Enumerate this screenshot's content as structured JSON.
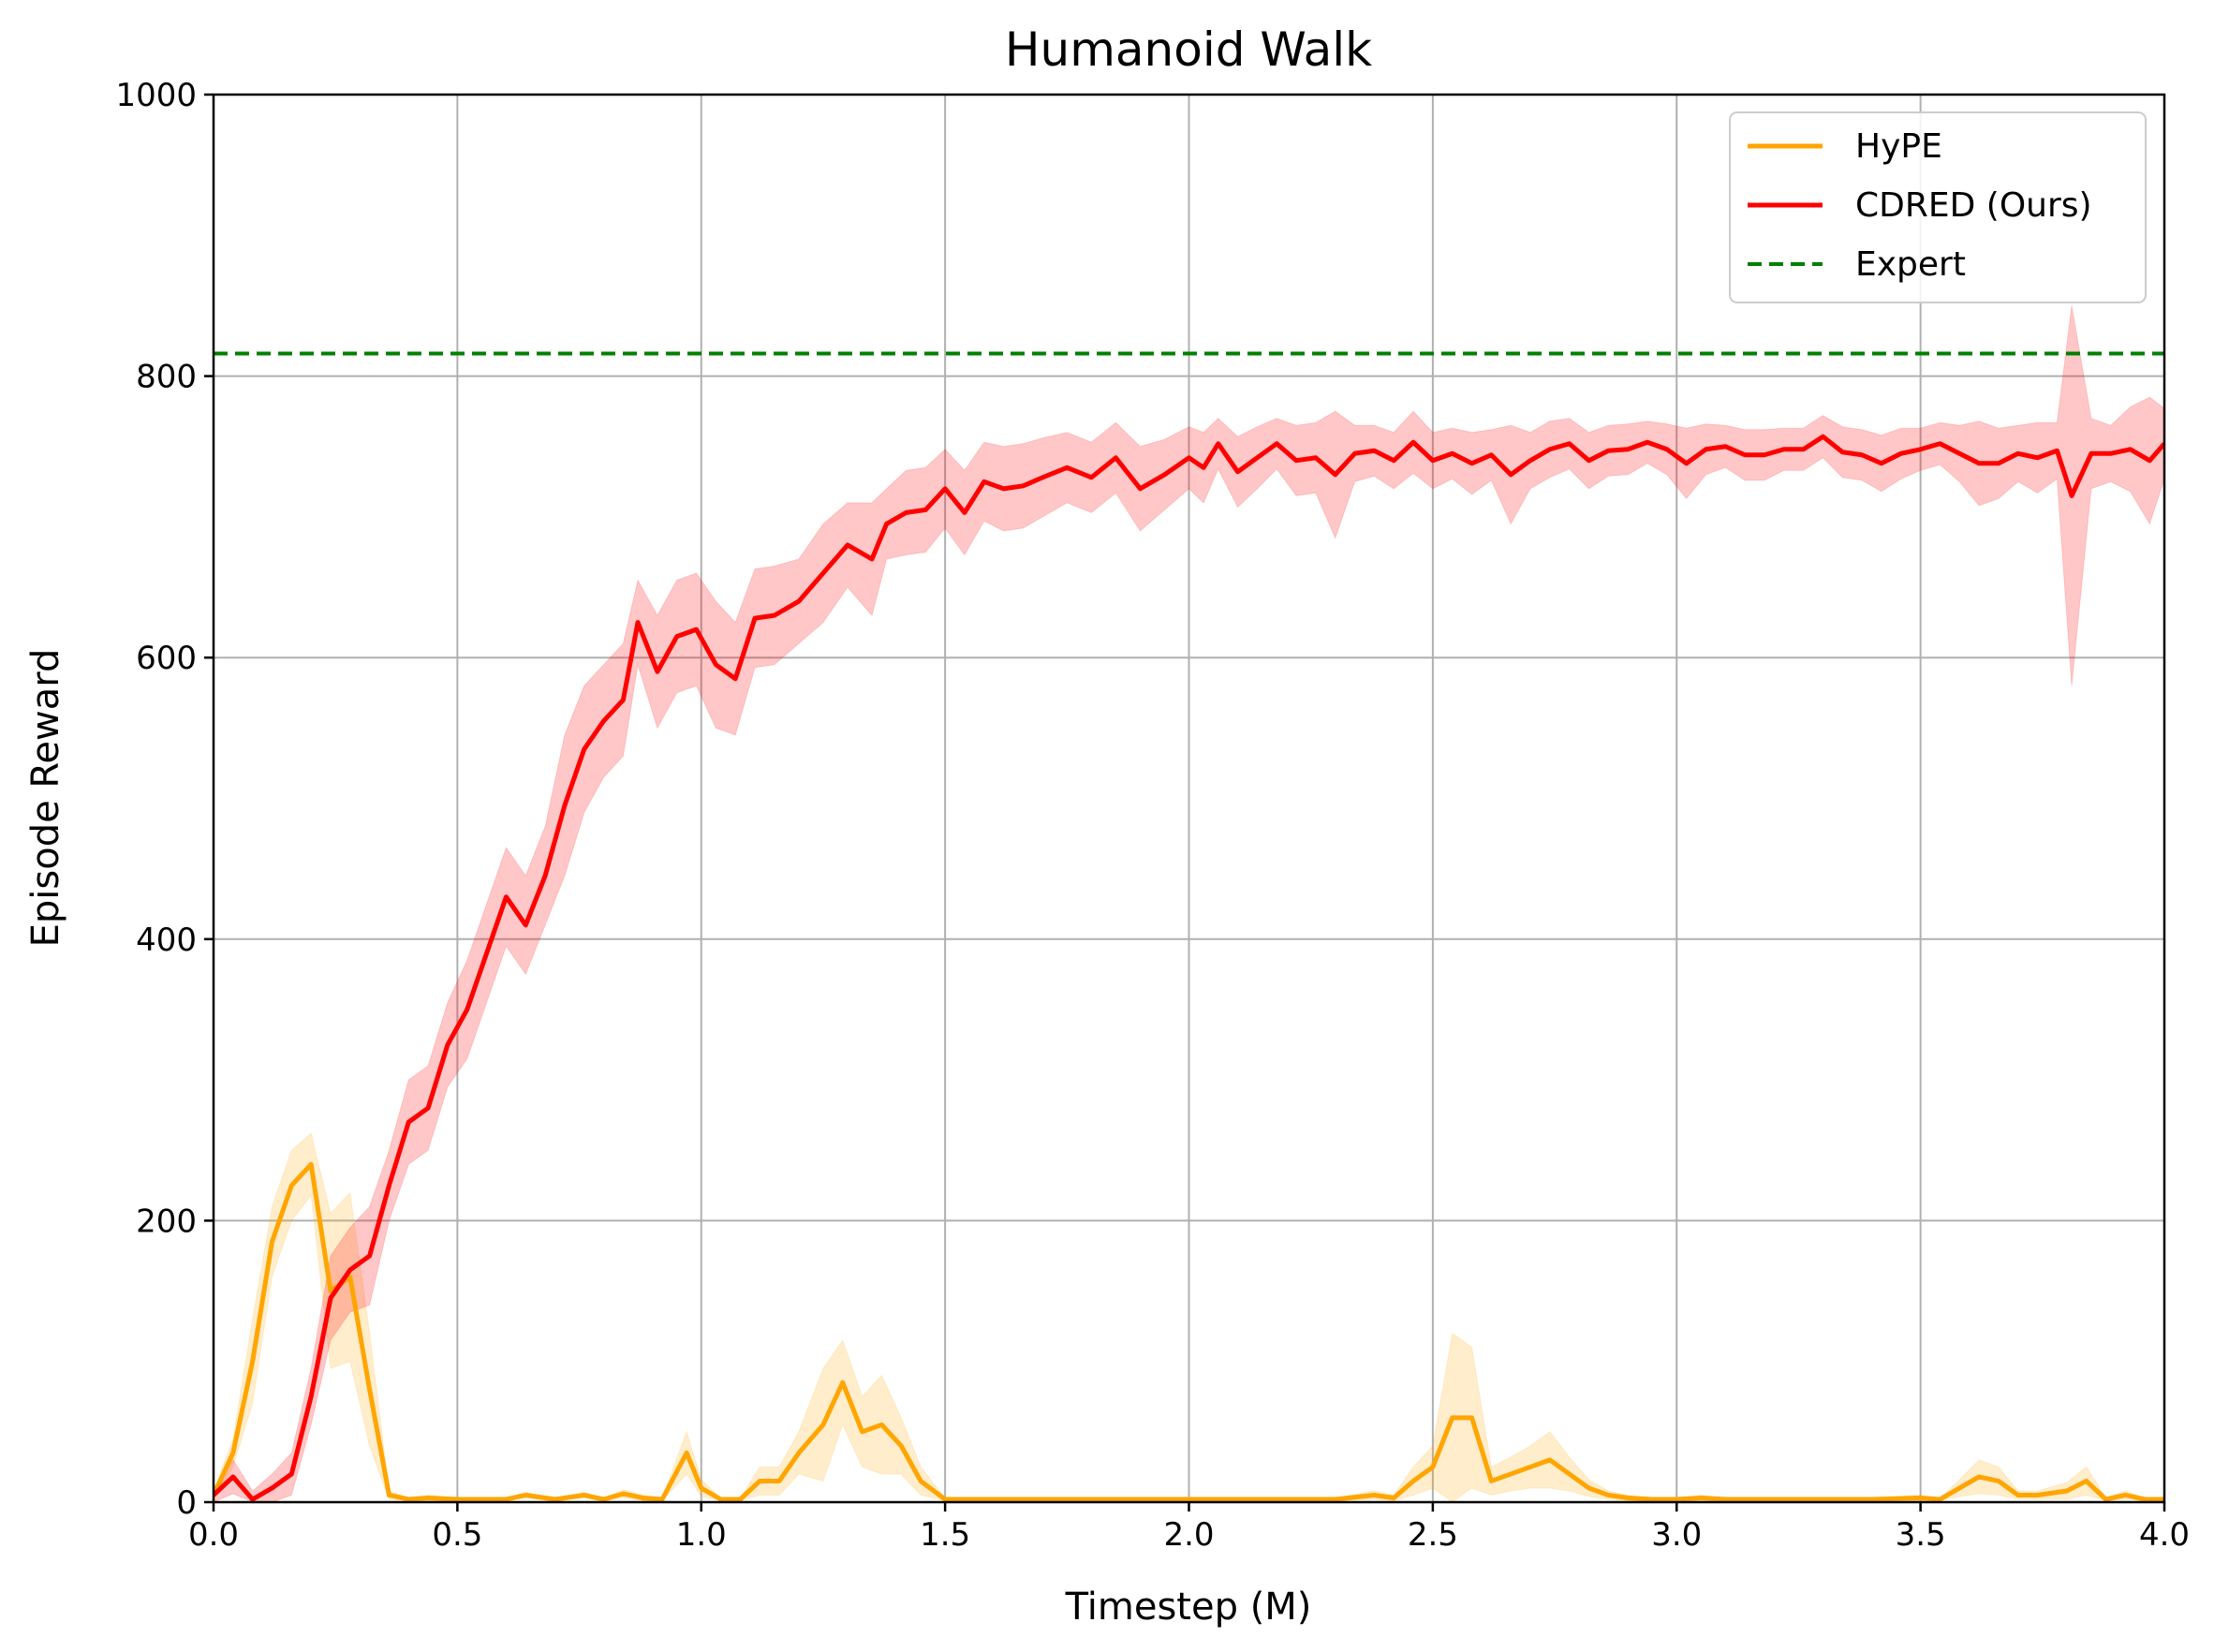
{
  "chart_data": {
    "type": "line",
    "title": "Humanoid Walk",
    "xlabel": "Timestep (M)",
    "ylabel": "Episode Reward",
    "xlim": [
      0,
      4
    ],
    "ylim": [
      0,
      1000
    ],
    "xticks": [
      "0.0",
      "0.5",
      "1.0",
      "1.5",
      "2.0",
      "2.5",
      "3.0",
      "3.5",
      "4.0"
    ],
    "yticks": [
      "0",
      "200",
      "400",
      "600",
      "800",
      "1000"
    ],
    "grid": true,
    "legend_position": "top-right",
    "series": [
      {
        "name": "HyPE",
        "color": "#ffa500",
        "style": "solid",
        "x": [
          0,
          0.04,
          0.08,
          0.12,
          0.16,
          0.2,
          0.24,
          0.28,
          0.32,
          0.36,
          0.4,
          0.44,
          0.5,
          0.56,
          0.6,
          0.64,
          0.7,
          0.76,
          0.8,
          0.84,
          0.88,
          0.92,
          0.97,
          1.0,
          1.04,
          1.08,
          1.12,
          1.16,
          1.2,
          1.25,
          1.29,
          1.33,
          1.37,
          1.41,
          1.45,
          1.5,
          1.6,
          1.7,
          1.8,
          1.9,
          2.0,
          2.1,
          2.2,
          2.3,
          2.38,
          2.42,
          2.46,
          2.5,
          2.54,
          2.58,
          2.62,
          2.66,
          2.7,
          2.74,
          2.78,
          2.82,
          2.86,
          2.9,
          2.95,
          3.0,
          3.05,
          3.1,
          3.2,
          3.3,
          3.4,
          3.5,
          3.54,
          3.58,
          3.62,
          3.66,
          3.7,
          3.74,
          3.78,
          3.8,
          3.84,
          3.88,
          3.92,
          3.96,
          4.0
        ],
        "values": [
          5,
          35,
          100,
          185,
          225,
          240,
          150,
          160,
          80,
          5,
          2,
          3,
          2,
          2,
          2,
          5,
          2,
          5,
          2,
          6,
          3,
          2,
          35,
          10,
          2,
          2,
          15,
          15,
          35,
          55,
          85,
          50,
          55,
          40,
          15,
          2,
          2,
          2,
          2,
          2,
          2,
          2,
          2,
          2,
          5,
          3,
          15,
          25,
          60,
          60,
          15,
          20,
          25,
          30,
          20,
          10,
          5,
          3,
          2,
          2,
          3,
          2,
          2,
          2,
          2,
          3,
          2,
          10,
          18,
          15,
          5,
          5,
          7,
          8,
          15,
          2,
          5,
          2,
          2
        ],
        "band_half_width": [
          3,
          10,
          30,
          25,
          25,
          22,
          55,
          60,
          40,
          3,
          1,
          2,
          1,
          1,
          1,
          2,
          1,
          2,
          1,
          3,
          2,
          1,
          15,
          6,
          1,
          1,
          10,
          10,
          15,
          40,
          30,
          25,
          35,
          20,
          10,
          1,
          1,
          1,
          1,
          1,
          1,
          1,
          1,
          1,
          3,
          2,
          10,
          15,
          60,
          50,
          10,
          12,
          15,
          20,
          12,
          6,
          3,
          2,
          1,
          1,
          2,
          1,
          1,
          1,
          1,
          2,
          1,
          6,
          12,
          10,
          3,
          3,
          5,
          6,
          10,
          1,
          3,
          1,
          1
        ]
      },
      {
        "name": "CDRED (Ours)",
        "color": "#ff0000",
        "style": "solid",
        "x": [
          0,
          0.04,
          0.08,
          0.12,
          0.16,
          0.2,
          0.24,
          0.28,
          0.32,
          0.36,
          0.4,
          0.44,
          0.48,
          0.52,
          0.56,
          0.6,
          0.64,
          0.68,
          0.72,
          0.76,
          0.8,
          0.84,
          0.87,
          0.91,
          0.95,
          0.99,
          1.03,
          1.07,
          1.11,
          1.15,
          1.2,
          1.25,
          1.3,
          1.35,
          1.38,
          1.42,
          1.46,
          1.5,
          1.54,
          1.58,
          1.62,
          1.66,
          1.7,
          1.75,
          1.8,
          1.85,
          1.9,
          1.95,
          2.0,
          2.03,
          2.06,
          2.1,
          2.14,
          2.18,
          2.22,
          2.26,
          2.3,
          2.34,
          2.38,
          2.42,
          2.46,
          2.5,
          2.54,
          2.58,
          2.62,
          2.66,
          2.7,
          2.74,
          2.78,
          2.82,
          2.86,
          2.9,
          2.94,
          2.98,
          3.02,
          3.06,
          3.1,
          3.14,
          3.18,
          3.22,
          3.26,
          3.3,
          3.34,
          3.38,
          3.42,
          3.46,
          3.5,
          3.54,
          3.58,
          3.62,
          3.66,
          3.7,
          3.74,
          3.78,
          3.81,
          3.85,
          3.89,
          3.93,
          3.97,
          4.0
        ],
        "values": [
          5,
          18,
          2,
          10,
          20,
          75,
          145,
          165,
          175,
          225,
          270,
          280,
          325,
          350,
          390,
          430,
          410,
          445,
          495,
          535,
          555,
          570,
          625,
          590,
          615,
          620,
          595,
          585,
          628,
          630,
          640,
          660,
          680,
          670,
          695,
          703,
          705,
          720,
          703,
          725,
          720,
          722,
          728,
          735,
          728,
          742,
          720,
          730,
          742,
          735,
          752,
          732,
          742,
          752,
          740,
          742,
          730,
          745,
          747,
          740,
          753,
          740,
          745,
          738,
          744,
          730,
          740,
          748,
          752,
          740,
          747,
          748,
          753,
          748,
          738,
          748,
          750,
          744,
          744,
          748,
          748,
          757,
          746,
          744,
          738,
          745,
          748,
          752,
          745,
          738,
          738,
          745,
          742,
          747,
          715,
          745,
          745,
          748,
          740,
          752
        ],
        "band_half_width": [
          5,
          12,
          6,
          10,
          15,
          20,
          30,
          30,
          35,
          25,
          30,
          30,
          30,
          35,
          35,
          35,
          35,
          35,
          50,
          45,
          40,
          40,
          30,
          40,
          40,
          40,
          45,
          40,
          35,
          35,
          30,
          35,
          30,
          40,
          25,
          30,
          30,
          28,
          30,
          28,
          30,
          30,
          28,
          25,
          25,
          25,
          30,
          25,
          22,
          25,
          18,
          25,
          22,
          18,
          25,
          25,
          45,
          20,
          18,
          20,
          22,
          20,
          18,
          22,
          18,
          35,
          20,
          20,
          18,
          20,
          18,
          18,
          15,
          18,
          25,
          18,
          15,
          18,
          18,
          15,
          15,
          15,
          18,
          18,
          20,
          18,
          15,
          15,
          20,
          30,
          25,
          20,
          25,
          20,
          135,
          25,
          20,
          30,
          45,
          25
        ]
      },
      {
        "name": "Expert",
        "color": "#008000",
        "style": "dashed",
        "x": [
          0,
          4
        ],
        "values": [
          816,
          816
        ]
      }
    ]
  }
}
